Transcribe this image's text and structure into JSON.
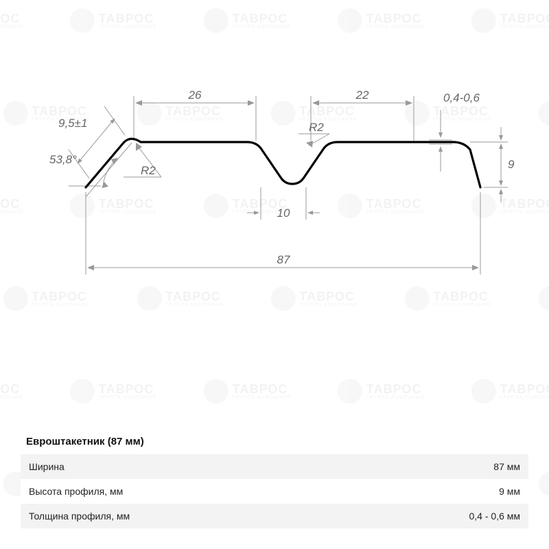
{
  "diagram": {
    "profile_stroke": "#000000",
    "profile_stroke_width": 3.2,
    "dim_color": "#999999",
    "dim_text_color": "#666666",
    "dim_font_size": 17,
    "labels": {
      "flange_9_5": "9,5±1",
      "angle_53_8": "53,8°",
      "r2_left": "R2",
      "top_26": "26",
      "top_22": "22",
      "r2_center": "R2",
      "valley_10": "10",
      "thickness": "0,4-0,6",
      "height_9": "9",
      "overall_87": "87"
    }
  },
  "watermark": {
    "brand": "ТАВРОС",
    "subtitle": "ГРУППА КОМПАНИЙ"
  },
  "spec": {
    "title": "Евроштакетник (87 мм)",
    "rows": [
      {
        "label": "Ширина",
        "value": "87 мм"
      },
      {
        "label": "Высота профиля, мм",
        "value": "9 мм"
      },
      {
        "label": "Толщина профиля, мм",
        "value": "0,4 - 0,6 мм"
      }
    ]
  }
}
